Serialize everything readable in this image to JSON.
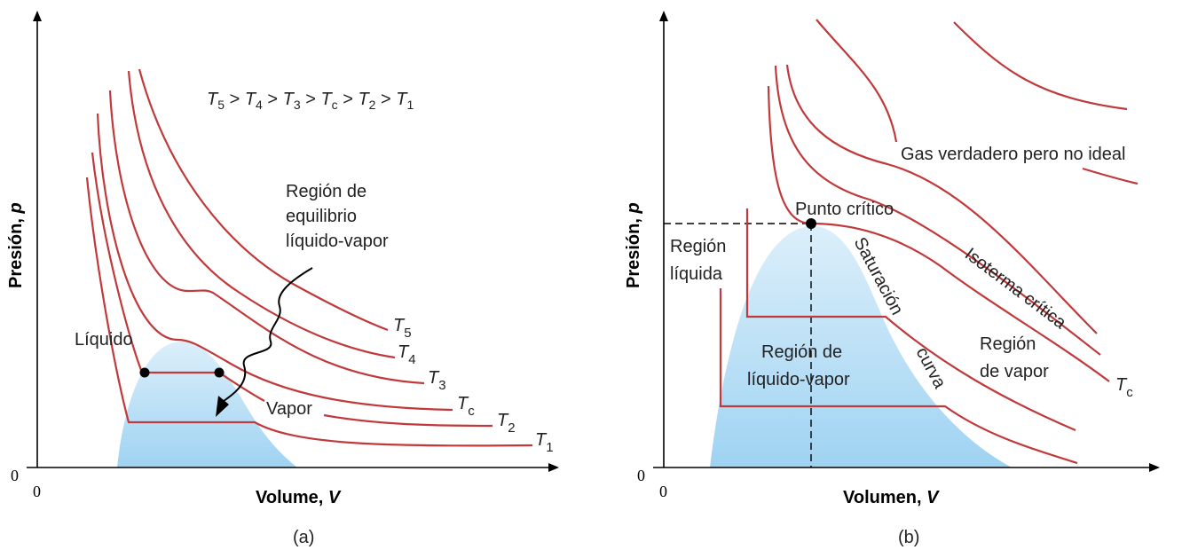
{
  "colors": {
    "isotherm": "#c0393b",
    "dome": "#9fd3f2",
    "axis": "#000000"
  },
  "panel_a": {
    "caption": "(a)",
    "y_axis_label": "Presión, ",
    "y_axis_var": "p",
    "x_axis_label": "Volume, ",
    "x_axis_var": "V",
    "origin_x": "0",
    "origin_y": "0",
    "relation": {
      "T": "T",
      "s5": "5",
      "s4": "4",
      "s3": "3",
      "sc": "c",
      "s2": "2",
      "s1": "1",
      "gt": " > "
    },
    "region_label": [
      "Región de",
      "equilibrio",
      "líquido-vapor"
    ],
    "liquid_label": "Líquido",
    "vapor_label": "Vapor",
    "isotherms": [
      {
        "T": "T",
        "sub": "5"
      },
      {
        "T": "T",
        "sub": "4"
      },
      {
        "T": "T",
        "sub": "3"
      },
      {
        "T": "T",
        "sub": "c"
      },
      {
        "T": "T",
        "sub": "2"
      },
      {
        "T": "T",
        "sub": "1"
      }
    ]
  },
  "panel_b": {
    "caption": "(b)",
    "y_axis_label": "Presión, ",
    "y_axis_var": "p",
    "x_axis_label": "Volumen, ",
    "x_axis_var": "V",
    "origin_x": "0",
    "origin_y": "0",
    "gas_label": "Gas verdadero pero no ideal",
    "critical_point": "Punto crítico",
    "liquid_region": [
      "Región",
      "líquida"
    ],
    "lv_region": [
      "Región de",
      "líquido-vapor"
    ],
    "vapor_region": [
      "Región",
      "de vapor"
    ],
    "saturation": "Saturación",
    "curve": "curva",
    "critical_isotherm": "Isoterma crítica",
    "tc": {
      "T": "T",
      "sub": "c"
    }
  }
}
